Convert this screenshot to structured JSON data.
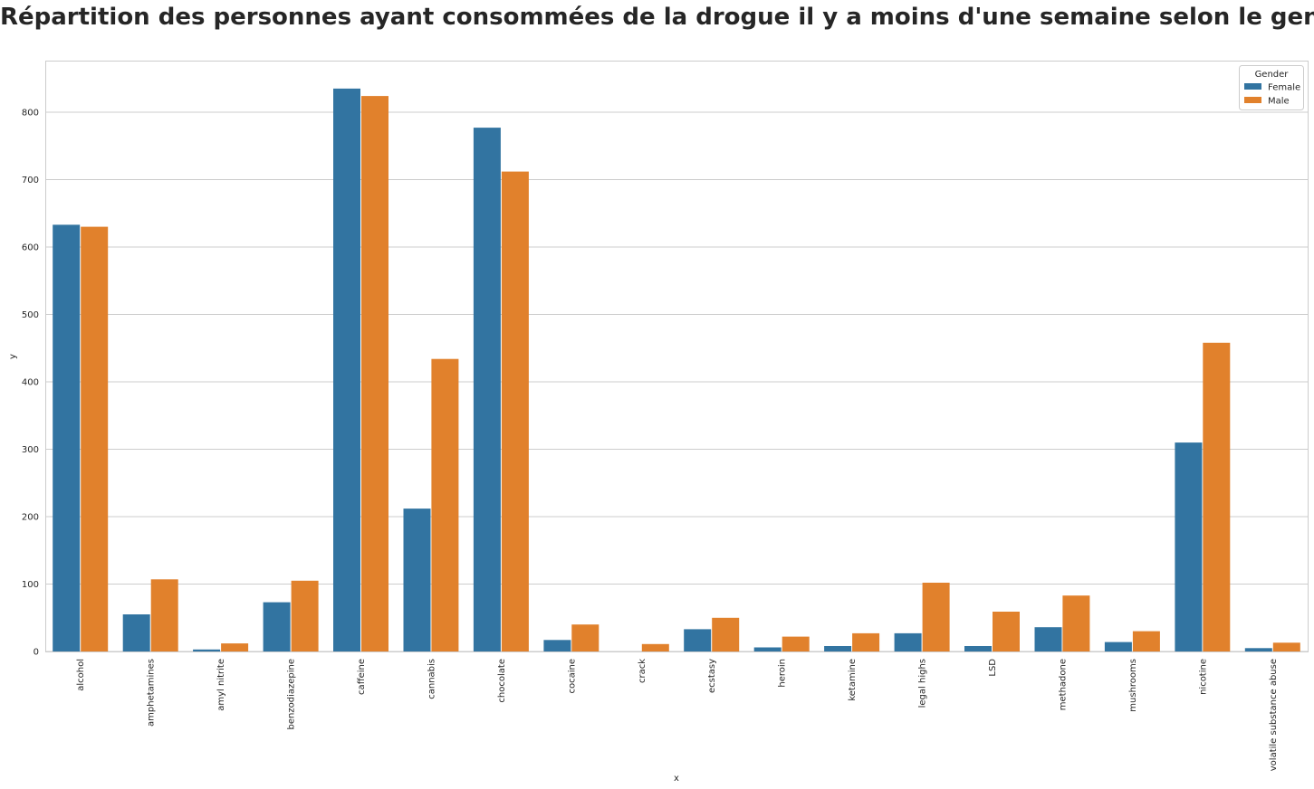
{
  "chart_data": {
    "type": "bar",
    "title": "Répartition des personnes ayant consommées de la drogue il y a moins d'une semaine selon le genre",
    "xlabel": "x",
    "ylabel": "y",
    "ylim": [
      0,
      880
    ],
    "yticks": [
      0,
      100,
      200,
      300,
      400,
      500,
      600,
      700,
      800
    ],
    "grid": true,
    "legend": {
      "title": "Gender",
      "placement": "top-right"
    },
    "categories": [
      "alcohol",
      "amphetamines",
      "amyl nitrite",
      "benzodiazepine",
      "caffeine",
      "cannabis",
      "chocolate",
      "cocaine",
      "crack",
      "ecstasy",
      "heroin",
      "ketamine",
      "legal highs",
      "LSD",
      "methadone",
      "mushrooms",
      "nicotine",
      "volatile substance abuse"
    ],
    "series": [
      {
        "name": "Female",
        "color": "#3274a1",
        "values": [
          633,
          55,
          3,
          73,
          835,
          212,
          777,
          17,
          0,
          33,
          6,
          8,
          27,
          8,
          36,
          14,
          310,
          5
        ]
      },
      {
        "name": "Male",
        "color": "#e1812c",
        "values": [
          630,
          107,
          12,
          105,
          824,
          434,
          712,
          40,
          11,
          50,
          22,
          27,
          102,
          59,
          83,
          30,
          458,
          13
        ]
      }
    ]
  }
}
